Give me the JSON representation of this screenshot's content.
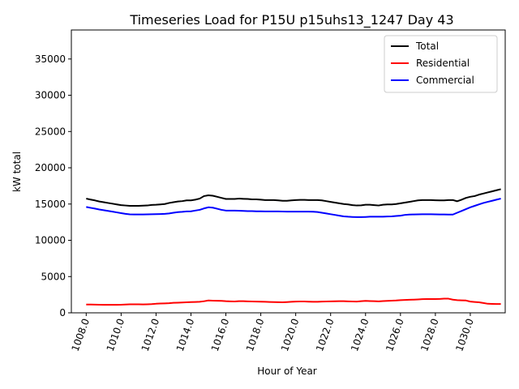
{
  "chart_data": {
    "type": "line",
    "title": "Timeseries Load for P15U p15uhs13_1247  Day 43",
    "xlabel": "Hour of Year",
    "ylabel": "kW total",
    "xlim": [
      1007.15,
      1032.0
    ],
    "ylim": [
      0,
      39000
    ],
    "xticks": [
      1008,
      1010,
      1012,
      1014,
      1016,
      1018,
      1020,
      1022,
      1024,
      1026,
      1028,
      1030
    ],
    "xtick_labels": [
      "1008.0",
      "1010.0",
      "1012.0",
      "1014.0",
      "1016.0",
      "1018.0",
      "1020.0",
      "1022.0",
      "1024.0",
      "1026.0",
      "1028.0",
      "1030.0"
    ],
    "yticks": [
      0,
      5000,
      10000,
      15000,
      20000,
      25000,
      30000,
      35000
    ],
    "ytick_labels": [
      "0",
      "5000",
      "10000",
      "15000",
      "20000",
      "25000",
      "30000",
      "35000"
    ],
    "grid": false,
    "legend_position": "top-right",
    "x": [
      1008.0,
      1008.25,
      1008.5,
      1008.75,
      1009.0,
      1009.25,
      1009.5,
      1009.75,
      1010.0,
      1010.25,
      1010.5,
      1010.75,
      1011.0,
      1011.25,
      1011.5,
      1011.75,
      1012.0,
      1012.25,
      1012.5,
      1012.75,
      1013.0,
      1013.25,
      1013.5,
      1013.75,
      1014.0,
      1014.25,
      1014.5,
      1014.75,
      1015.0,
      1015.25,
      1015.5,
      1015.75,
      1016.0,
      1016.25,
      1016.5,
      1016.75,
      1017.0,
      1017.25,
      1017.5,
      1017.75,
      1018.0,
      1018.25,
      1018.5,
      1018.75,
      1019.0,
      1019.25,
      1019.5,
      1019.75,
      1020.0,
      1020.25,
      1020.5,
      1020.75,
      1021.0,
      1021.25,
      1021.5,
      1021.75,
      1022.0,
      1022.25,
      1022.5,
      1022.75,
      1023.0,
      1023.25,
      1023.5,
      1023.75,
      1024.0,
      1024.25,
      1024.5,
      1024.75,
      1025.0,
      1025.25,
      1025.5,
      1025.75,
      1026.0,
      1026.25,
      1026.5,
      1026.75,
      1027.0,
      1027.25,
      1027.5,
      1027.75,
      1028.0,
      1028.25,
      1028.5,
      1028.75,
      1029.0,
      1029.25,
      1029.5,
      1029.75,
      1030.0,
      1030.25,
      1030.5,
      1030.75,
      1031.0,
      1031.25,
      1031.5,
      1031.75
    ],
    "series": [
      {
        "name": "Total",
        "color": "#000000",
        "values": [
          15750,
          15620,
          15500,
          15350,
          15250,
          15150,
          15050,
          14950,
          14850,
          14800,
          14750,
          14750,
          14750,
          14780,
          14800,
          14880,
          14900,
          14950,
          15000,
          15150,
          15250,
          15350,
          15400,
          15500,
          15500,
          15600,
          15750,
          16100,
          16200,
          16150,
          16000,
          15850,
          15700,
          15700,
          15700,
          15750,
          15720,
          15700,
          15650,
          15650,
          15600,
          15550,
          15550,
          15550,
          15500,
          15450,
          15450,
          15500,
          15550,
          15580,
          15580,
          15550,
          15550,
          15550,
          15500,
          15400,
          15300,
          15200,
          15100,
          15000,
          14950,
          14850,
          14800,
          14820,
          14900,
          14900,
          14850,
          14800,
          14900,
          14950,
          14950,
          15000,
          15100,
          15200,
          15300,
          15400,
          15500,
          15550,
          15550,
          15550,
          15520,
          15500,
          15500,
          15550,
          15550,
          15380,
          15600,
          15850,
          16000,
          16100,
          16300,
          16450,
          16600,
          16750,
          16900,
          17050
        ]
      },
      {
        "name": "Residential",
        "color": "#ff0000",
        "values": [
          1150,
          1140,
          1130,
          1120,
          1110,
          1100,
          1100,
          1110,
          1120,
          1150,
          1180,
          1180,
          1170,
          1160,
          1180,
          1200,
          1250,
          1280,
          1300,
          1330,
          1380,
          1400,
          1420,
          1450,
          1480,
          1500,
          1520,
          1600,
          1700,
          1680,
          1660,
          1650,
          1600,
          1580,
          1560,
          1600,
          1600,
          1580,
          1560,
          1550,
          1540,
          1520,
          1500,
          1480,
          1460,
          1450,
          1480,
          1520,
          1550,
          1560,
          1560,
          1540,
          1520,
          1520,
          1550,
          1570,
          1580,
          1590,
          1600,
          1600,
          1580,
          1560,
          1550,
          1600,
          1650,
          1620,
          1600,
          1580,
          1620,
          1650,
          1680,
          1700,
          1750,
          1780,
          1800,
          1820,
          1850,
          1880,
          1900,
          1900,
          1900,
          1920,
          1950,
          1950,
          1820,
          1750,
          1720,
          1700,
          1550,
          1500,
          1450,
          1350,
          1250,
          1230,
          1220,
          1220
        ]
      },
      {
        "name": "Commercial",
        "color": "#0000ff",
        "values": [
          14600,
          14480,
          14370,
          14250,
          14150,
          14050,
          13950,
          13850,
          13750,
          13650,
          13580,
          13560,
          13560,
          13570,
          13580,
          13590,
          13600,
          13620,
          13650,
          13700,
          13800,
          13880,
          13920,
          13980,
          14000,
          14100,
          14200,
          14400,
          14550,
          14500,
          14350,
          14200,
          14100,
          14100,
          14100,
          14080,
          14050,
          14030,
          14020,
          14000,
          13990,
          13980,
          13980,
          13980,
          13980,
          13970,
          13960,
          13950,
          13950,
          13950,
          13950,
          13950,
          13940,
          13900,
          13800,
          13700,
          13600,
          13500,
          13400,
          13300,
          13250,
          13220,
          13200,
          13200,
          13220,
          13250,
          13250,
          13250,
          13260,
          13280,
          13300,
          13350,
          13400,
          13500,
          13550,
          13570,
          13580,
          13590,
          13590,
          13590,
          13580,
          13570,
          13560,
          13550,
          13550,
          13800,
          14050,
          14300,
          14550,
          14750,
          14950,
          15150,
          15300,
          15450,
          15600,
          15750
        ]
      }
    ]
  }
}
